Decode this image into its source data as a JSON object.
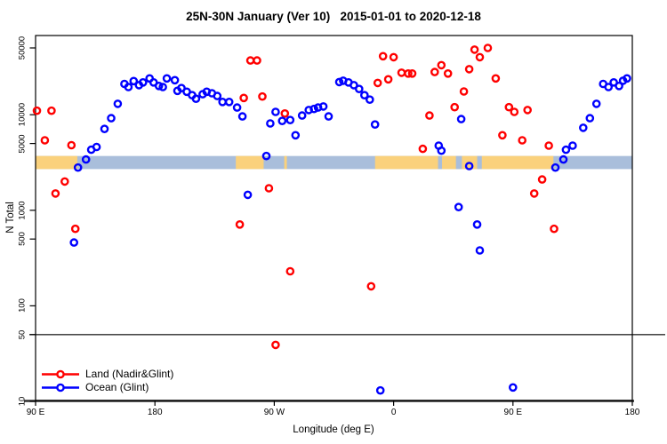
{
  "chart_data": {
    "type": "scatter",
    "title": "25N-30N January (Ver 10)   2015-01-01 to 2020-12-18",
    "xlabel": "Longitude (deg E)",
    "ylabel": "N Total",
    "x_axis": {
      "unit": "deg E eastward from 90E",
      "range_deg": [
        90,
        540
      ],
      "ticks": [
        {
          "deg": 90,
          "label": "90 E"
        },
        {
          "deg": 180,
          "label": "180"
        },
        {
          "deg": 270,
          "label": "90 W"
        },
        {
          "deg": 360,
          "label": "0"
        },
        {
          "deg": 450,
          "label": "90 E"
        },
        {
          "deg": 540,
          "label": "180"
        }
      ]
    },
    "y_axis": {
      "scale": "log10",
      "range": [
        10,
        60000
      ],
      "ticks": [
        {
          "value": 50000,
          "label": "50000"
        },
        {
          "value": 10000,
          "label": "10000"
        },
        {
          "value": 5000,
          "label": "5000"
        },
        {
          "value": 1000,
          "label": "1000"
        },
        {
          "value": 500,
          "label": "500"
        },
        {
          "value": 100,
          "label": "100"
        },
        {
          "value": 50,
          "label": "50"
        },
        {
          "value": 10,
          "label": "10"
        }
      ]
    },
    "reference_lines": [
      50,
      10
    ],
    "surface_band": {
      "value_range": [
        2700,
        3700
      ],
      "ocean_color": "#a9bedb",
      "land_color": "#fad17c",
      "land_segments_deg": [
        [
          90,
          121.5
        ],
        [
          241,
          262
        ],
        [
          277.5,
          279.5
        ],
        [
          346,
          480.5
        ]
      ],
      "ocean_slivers_deg": [
        [
          393.5,
          396.5
        ],
        [
          407,
          411.5
        ],
        [
          423,
          426.5
        ]
      ]
    },
    "legend": {
      "position": "bottom-left"
    },
    "series": [
      {
        "name": "Land (Nadir&Glint)",
        "color": "#ff0000",
        "points": [
          [
            91,
            11000
          ],
          [
            102,
            11000
          ],
          [
            97,
            5400
          ],
          [
            117,
            4800
          ],
          [
            112,
            2000
          ],
          [
            105,
            1500
          ],
          [
            120,
            640
          ],
          [
            252,
            37000
          ],
          [
            257,
            37000
          ],
          [
            247,
            15000
          ],
          [
            261,
            15500
          ],
          [
            278,
            10300
          ],
          [
            266,
            1700
          ],
          [
            244,
            710
          ],
          [
            282,
            230
          ],
          [
            271,
            39
          ],
          [
            352,
            41000
          ],
          [
            360,
            40000
          ],
          [
            348,
            21500
          ],
          [
            356,
            23500
          ],
          [
            366,
            27500
          ],
          [
            371,
            27000
          ],
          [
            374,
            27000
          ],
          [
            391,
            28000
          ],
          [
            396,
            33000
          ],
          [
            401,
            27000
          ],
          [
            417,
            30000
          ],
          [
            421,
            48000
          ],
          [
            425,
            40000
          ],
          [
            431,
            50000
          ],
          [
            437,
            24000
          ],
          [
            413,
            17500
          ],
          [
            406,
            12000
          ],
          [
            387,
            9800
          ],
          [
            382,
            4400
          ],
          [
            343,
            160
          ],
          [
            447,
            12000
          ],
          [
            451,
            10700
          ],
          [
            461,
            11200
          ],
          [
            442,
            6100
          ],
          [
            457,
            5400
          ],
          [
            477,
            4750
          ],
          [
            472,
            2100
          ],
          [
            466,
            1500
          ],
          [
            481,
            640
          ]
        ]
      },
      {
        "name": "Ocean (Glint)",
        "color": "#0000ff",
        "points": [
          [
            132,
            4300
          ],
          [
            136,
            4600
          ],
          [
            128,
            3400
          ],
          [
            122,
            2800
          ],
          [
            119,
            460
          ],
          [
            142,
            7100
          ],
          [
            147,
            9200
          ],
          [
            152,
            13000
          ],
          [
            157,
            21000
          ],
          [
            160,
            19500
          ],
          [
            164,
            22500
          ],
          [
            168,
            20400
          ],
          [
            171,
            21800
          ],
          [
            176,
            24000
          ],
          [
            179,
            21800
          ],
          [
            183,
            20000
          ],
          [
            186,
            19500
          ],
          [
            189,
            24000
          ],
          [
            195,
            23000
          ],
          [
            197,
            17800
          ],
          [
            200,
            19000
          ],
          [
            204,
            17400
          ],
          [
            208,
            16000
          ],
          [
            211,
            14700
          ],
          [
            216,
            16400
          ],
          [
            219,
            17400
          ],
          [
            223,
            16800
          ],
          [
            227,
            15700
          ],
          [
            231,
            13600
          ],
          [
            236,
            13600
          ],
          [
            242,
            11900
          ],
          [
            246,
            9600
          ],
          [
            264,
            3700
          ],
          [
            250,
            1450
          ],
          [
            267,
            8100
          ],
          [
            271,
            10700
          ],
          [
            276,
            8600
          ],
          [
            282,
            8800
          ],
          [
            286,
            6100
          ],
          [
            291,
            9800
          ],
          [
            296,
            11200
          ],
          [
            300,
            11500
          ],
          [
            303,
            11900
          ],
          [
            307,
            12200
          ],
          [
            311,
            9600
          ],
          [
            319,
            22000
          ],
          [
            322,
            22700
          ],
          [
            326,
            21800
          ],
          [
            330,
            20400
          ],
          [
            334,
            18600
          ],
          [
            338,
            16000
          ],
          [
            342,
            14400
          ],
          [
            346,
            7900
          ],
          [
            350,
            13
          ],
          [
            394,
            4750
          ],
          [
            396,
            4200
          ],
          [
            411,
            9000
          ],
          [
            417,
            2900
          ],
          [
            409,
            1080
          ],
          [
            423,
            710
          ],
          [
            425,
            380
          ],
          [
            450,
            14
          ],
          [
            482,
            2800
          ],
          [
            488,
            3400
          ],
          [
            490,
            4300
          ],
          [
            495,
            4750
          ],
          [
            503,
            7300
          ],
          [
            508,
            9200
          ],
          [
            513,
            13000
          ],
          [
            518,
            21000
          ],
          [
            522,
            19500
          ],
          [
            526,
            21800
          ],
          [
            530,
            20000
          ],
          [
            533,
            22700
          ],
          [
            536,
            24000
          ]
        ]
      }
    ],
    "style": {
      "marker": "open-circle",
      "marker_radius_px": 3.6,
      "marker_stroke_px": 2.4,
      "axis_color": "#000000",
      "ref_line_color": "#2e2e2e"
    }
  }
}
